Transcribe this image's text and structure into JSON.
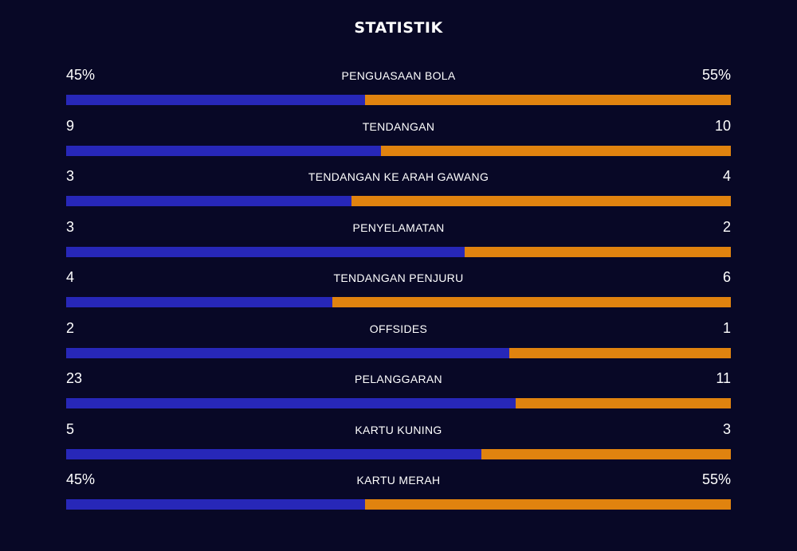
{
  "title": "STATISTIK",
  "colors": {
    "background": "#080826",
    "home": "#2727b8",
    "away": "#e0830f"
  },
  "stats": [
    {
      "label": "PENGUASAAN BOLA",
      "left": "45%",
      "right": "55%",
      "left_share": 0.45
    },
    {
      "label": "TENDANGAN",
      "left": "9",
      "right": "10",
      "left_share": 0.474
    },
    {
      "label": "TENDANGAN KE ARAH GAWANG",
      "left": "3",
      "right": "4",
      "left_share": 0.429
    },
    {
      "label": "PENYELAMATAN",
      "left": "3",
      "right": "2",
      "left_share": 0.6
    },
    {
      "label": "TENDANGAN PENJURU",
      "left": "4",
      "right": "6",
      "left_share": 0.4
    },
    {
      "label": "OFFSIDES",
      "left": "2",
      "right": "1",
      "left_share": 0.667
    },
    {
      "label": "PELANGGARAN",
      "left": "23",
      "right": "11",
      "left_share": 0.676
    },
    {
      "label": "KARTU KUNING",
      "left": "5",
      "right": "3",
      "left_share": 0.625
    },
    {
      "label": "KARTU MERAH",
      "left": "45%",
      "right": "55%",
      "left_share": 0.45
    }
  ]
}
